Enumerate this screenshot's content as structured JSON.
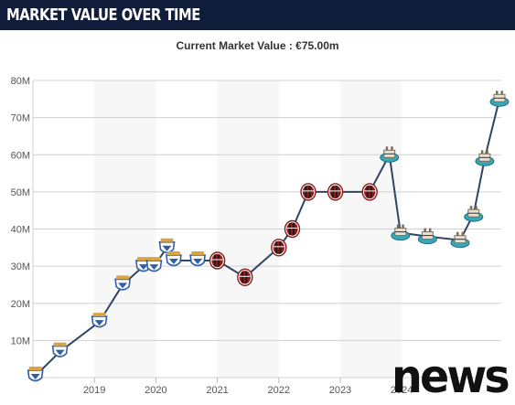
{
  "header": {
    "title": "MARKET VALUE OVER TIME"
  },
  "subtitle": "Current Market Value : €75.00m",
  "watermark": "news",
  "colors": {
    "header_bg": "#0f1c3a",
    "line": "#2f4563",
    "grid": "#d0d0d0",
    "plot_bg_alt": "#f7f7f7",
    "club_brescia": "#2f5fa8",
    "club_milan": "#8b1a1a",
    "club_newcastle": "#3aa7b8"
  },
  "chart_data": {
    "type": "line",
    "title": "",
    "xlabel": "",
    "ylabel": "",
    "y_unit": "M",
    "ylim": [
      0,
      80
    ],
    "yticks": [
      "",
      "10M",
      "20M",
      "30M",
      "40M",
      "50M",
      "60M",
      "70M",
      "80M"
    ],
    "xlim": [
      2018.0,
      2025.62
    ],
    "xticks": [
      "2019",
      "2020",
      "2021",
      "2022",
      "2023",
      "2024"
    ],
    "grid": true,
    "series": [
      {
        "points": [
          {
            "x": 2018.04,
            "y": 0.5,
            "club": "brescia-crest-icon"
          },
          {
            "x": 2018.44,
            "y": 7,
            "club": "brescia-crest-icon"
          },
          {
            "x": 2019.08,
            "y": 15,
            "club": "brescia-crest-icon"
          },
          {
            "x": 2019.46,
            "y": 25,
            "club": "brescia-crest-icon"
          },
          {
            "x": 2019.8,
            "y": 30,
            "club": "brescia-crest-icon"
          },
          {
            "x": 2019.97,
            "y": 30,
            "club": "brescia-crest-icon"
          },
          {
            "x": 2020.18,
            "y": 35,
            "club": "brescia-crest-icon"
          },
          {
            "x": 2020.29,
            "y": 31.5,
            "club": "brescia-crest-icon"
          },
          {
            "x": 2020.68,
            "y": 31.5,
            "club": "brescia-crest-icon"
          },
          {
            "x": 2021.0,
            "y": 31.5,
            "club": "milan-crest-icon"
          },
          {
            "x": 2021.45,
            "y": 27,
            "club": "milan-crest-icon"
          },
          {
            "x": 2022.0,
            "y": 35,
            "club": "milan-crest-icon"
          },
          {
            "x": 2022.22,
            "y": 40,
            "club": "milan-crest-icon"
          },
          {
            "x": 2022.48,
            "y": 50,
            "club": "milan-crest-icon"
          },
          {
            "x": 2022.92,
            "y": 50,
            "club": "milan-crest-icon"
          },
          {
            "x": 2023.48,
            "y": 50,
            "club": "milan-crest-icon"
          },
          {
            "x": 2023.8,
            "y": 60,
            "club": "newcastle-crest-icon"
          },
          {
            "x": 2023.98,
            "y": 39,
            "club": "newcastle-crest-icon"
          },
          {
            "x": 2024.42,
            "y": 38,
            "club": "newcastle-crest-icon"
          },
          {
            "x": 2024.95,
            "y": 37,
            "club": "newcastle-crest-icon"
          },
          {
            "x": 2025.17,
            "y": 44,
            "club": "newcastle-crest-icon"
          },
          {
            "x": 2025.35,
            "y": 59,
            "club": "newcastle-crest-icon"
          },
          {
            "x": 2025.59,
            "y": 75,
            "club": "newcastle-crest-icon"
          }
        ]
      }
    ]
  }
}
